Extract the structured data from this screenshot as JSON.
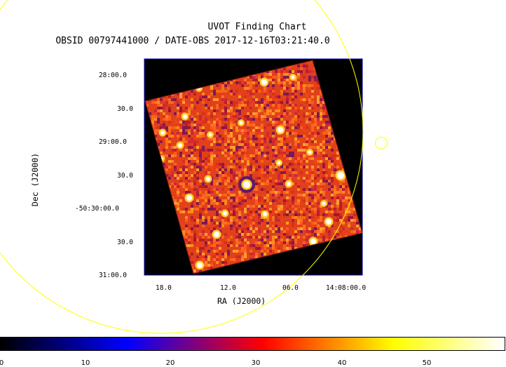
{
  "title": "UVOT Finding Chart",
  "subtitle": "OBSID 00797441000 / DATE-OBS 2017-12-16T03:21:40.0",
  "xlabel": "RA (J2000)",
  "ylabel": "Dec (J2000)",
  "dec_ticks": [
    "28:00.0",
    "30.0",
    "29:00.0",
    "30.0",
    "-50:30:00.0",
    "30.0",
    "31:00.0"
  ],
  "ra_ticks": [
    "18.0",
    "12.0",
    "06.0",
    "14:08:00.0"
  ],
  "colorbar": {
    "ticks": [
      "0",
      "10",
      "20",
      "30",
      "40",
      "50"
    ],
    "colors": [
      "#000000",
      "#0000ff",
      "#ff0000",
      "#ffff00",
      "#ffffff"
    ]
  },
  "colors": {
    "image_background": "#000000",
    "frame": "#0000aa",
    "region_circles": "#ffff00"
  }
}
